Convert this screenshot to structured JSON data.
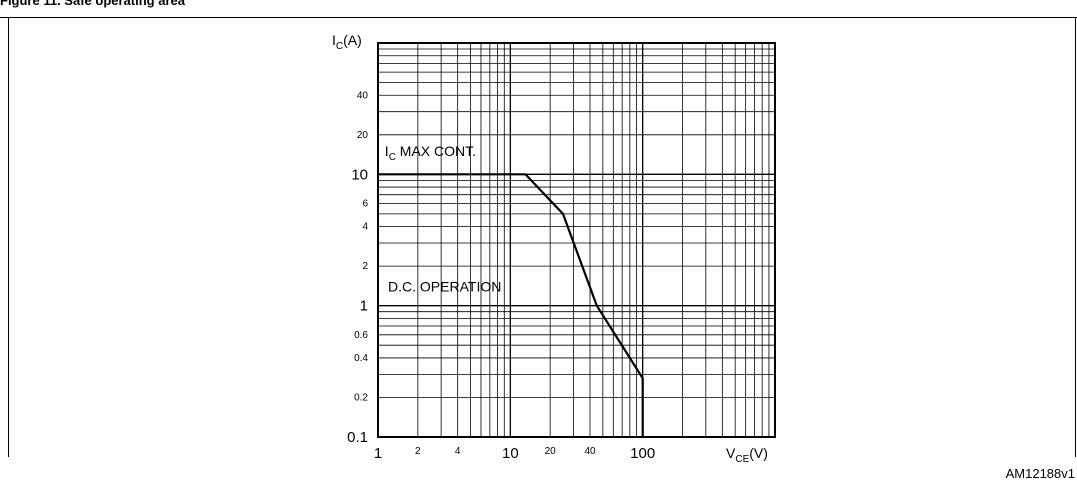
{
  "figure": {
    "caption": "Figure 11. Safe operating area",
    "reference_code": "AM12188v1"
  },
  "chart_data": {
    "type": "line",
    "title": "",
    "x_scale": "log",
    "y_scale": "log",
    "xlim": [
      1,
      1000
    ],
    "ylim": [
      0.1,
      100
    ],
    "x_axis": {
      "label_main": "V",
      "label_sub": "CE",
      "label_unit": "(V)",
      "major_ticks": [
        1,
        10,
        100
      ],
      "minor_tick_labels": [
        2,
        4,
        20,
        40
      ]
    },
    "y_axis": {
      "label_main": "I",
      "label_sub": "C",
      "label_unit": "(A)",
      "major_ticks": [
        0.1,
        1,
        10
      ],
      "minor_tick_labels": [
        0.2,
        0.4,
        0.6,
        2,
        4,
        6,
        20,
        40
      ]
    },
    "grid": true,
    "series": [
      {
        "name": "",
        "points": [
          {
            "x": 1,
            "y": 10
          },
          {
            "x": 13,
            "y": 10
          },
          {
            "x": 25,
            "y": 5
          },
          {
            "x": 45,
            "y": 1
          },
          {
            "x": 100,
            "y": 0.28
          },
          {
            "x": 100,
            "y": 0.1
          }
        ]
      }
    ],
    "annotations": [
      {
        "text_main": "I",
        "text_sub": "C",
        "text_rest": " MAX CONT.",
        "x": 1.05,
        "y": 15
      },
      {
        "text_main": "D.C. OPERATION",
        "x": 1.15,
        "y": 1.4
      }
    ]
  }
}
